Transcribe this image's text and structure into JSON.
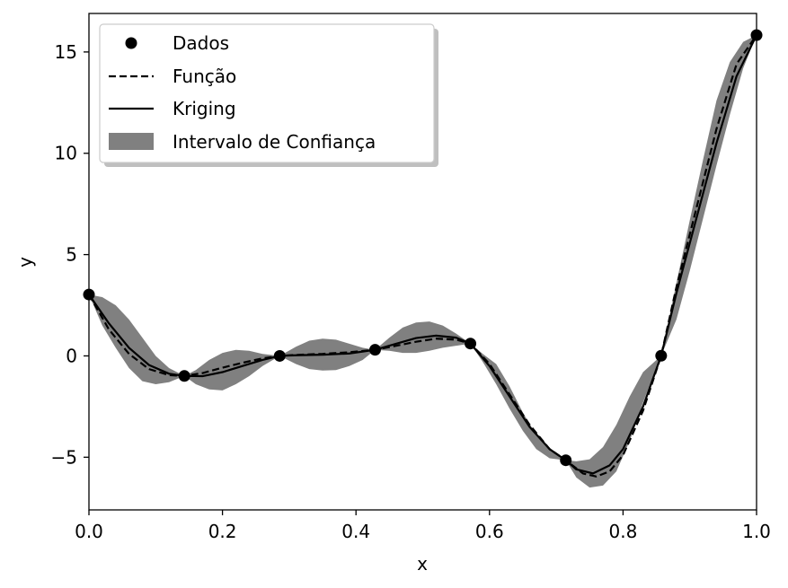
{
  "chart_data": {
    "type": "line",
    "title": "",
    "xlabel": "x",
    "ylabel": "y",
    "xlim": [
      0.0,
      1.0
    ],
    "ylim": [
      -7.6,
      16.9
    ],
    "x_ticks": [
      0.0,
      0.2,
      0.4,
      0.6,
      0.8,
      1.0
    ],
    "x_tick_labels": [
      "0.0",
      "0.2",
      "0.4",
      "0.6",
      "0.8",
      "1.0"
    ],
    "y_ticks": [
      -5,
      0,
      5,
      10,
      15
    ],
    "y_tick_labels": [
      "−5",
      "0",
      "5",
      "10",
      "15"
    ],
    "grid": false,
    "legend_placement": "upper-left",
    "legend": [
      {
        "key": "dados",
        "label": "Dados",
        "marker": "circle"
      },
      {
        "key": "funcao",
        "label": "Função",
        "linestyle": "dashed"
      },
      {
        "key": "kriging",
        "label": "Kriging",
        "linestyle": "solid"
      },
      {
        "key": "intervalo",
        "label": "Intervalo de Confiança",
        "style": "fill"
      }
    ],
    "colors": {
      "data": "#000000",
      "function": "#000000",
      "kriging": "#000000",
      "confidence": "#808080"
    },
    "dados": {
      "x": [
        0.0,
        0.1429,
        0.2857,
        0.4286,
        0.5714,
        0.7143,
        0.8571,
        1.0
      ],
      "y": [
        3.03,
        -0.99,
        0.0,
        0.3,
        0.61,
        -5.15,
        0.01,
        15.83
      ]
    },
    "funcao": {
      "x": [
        0.0,
        0.03,
        0.06,
        0.09,
        0.12,
        0.1429,
        0.17,
        0.2,
        0.23,
        0.26,
        0.2857,
        0.31,
        0.35,
        0.39,
        0.4286,
        0.46,
        0.49,
        0.52,
        0.55,
        0.5714,
        0.6,
        0.63,
        0.66,
        0.69,
        0.7143,
        0.74,
        0.76,
        0.78,
        0.8,
        0.83,
        0.8571,
        0.88,
        0.91,
        0.94,
        0.97,
        1.0
      ],
      "y": [
        3.03,
        1.3,
        0.1,
        -0.65,
        -0.95,
        -0.99,
        -0.85,
        -0.58,
        -0.34,
        -0.12,
        0.0,
        0.05,
        0.1,
        0.18,
        0.3,
        0.5,
        0.7,
        0.85,
        0.8,
        0.61,
        -0.4,
        -1.9,
        -3.4,
        -4.6,
        -5.15,
        -5.8,
        -5.95,
        -5.7,
        -4.9,
        -2.7,
        0.01,
        3.4,
        7.3,
        11.2,
        14.4,
        15.83
      ]
    },
    "kriging": {
      "x": [
        0.0,
        0.03,
        0.06,
        0.09,
        0.12,
        0.1429,
        0.17,
        0.2,
        0.23,
        0.26,
        0.2857,
        0.31,
        0.35,
        0.39,
        0.4286,
        0.46,
        0.49,
        0.52,
        0.55,
        0.5714,
        0.6,
        0.63,
        0.66,
        0.69,
        0.7143,
        0.73,
        0.755,
        0.78,
        0.8,
        0.83,
        0.8571,
        0.88,
        0.91,
        0.94,
        0.97,
        1.0
      ],
      "y": [
        3.03,
        1.6,
        0.4,
        -0.45,
        -0.88,
        -0.99,
        -1.0,
        -0.8,
        -0.5,
        -0.2,
        0.0,
        0.03,
        0.06,
        0.12,
        0.3,
        0.6,
        0.88,
        1.0,
        0.9,
        0.61,
        -0.5,
        -2.0,
        -3.5,
        -4.6,
        -5.15,
        -5.6,
        -5.8,
        -5.4,
        -4.6,
        -2.5,
        0.01,
        3.1,
        6.8,
        10.5,
        13.8,
        15.83
      ]
    },
    "intervalo": {
      "x": [
        0.0,
        0.02,
        0.04,
        0.06,
        0.08,
        0.1,
        0.12,
        0.1429,
        0.16,
        0.18,
        0.2,
        0.22,
        0.24,
        0.26,
        0.2857,
        0.31,
        0.33,
        0.35,
        0.37,
        0.39,
        0.41,
        0.4286,
        0.45,
        0.47,
        0.49,
        0.51,
        0.53,
        0.55,
        0.5714,
        0.59,
        0.61,
        0.63,
        0.65,
        0.67,
        0.69,
        0.7143,
        0.73,
        0.75,
        0.77,
        0.79,
        0.81,
        0.83,
        0.8571,
        0.88,
        0.9,
        0.92,
        0.94,
        0.96,
        0.98,
        1.0
      ],
      "upper": [
        3.03,
        2.9,
        2.5,
        1.8,
        0.9,
        0.0,
        -0.6,
        -0.99,
        -0.7,
        -0.2,
        0.15,
        0.3,
        0.25,
        0.1,
        0.0,
        0.45,
        0.75,
        0.85,
        0.8,
        0.6,
        0.4,
        0.3,
        0.9,
        1.4,
        1.65,
        1.7,
        1.5,
        1.1,
        0.61,
        0.1,
        -0.4,
        -1.5,
        -2.8,
        -3.9,
        -4.6,
        -5.15,
        -5.2,
        -5.1,
        -4.5,
        -3.4,
        -2.0,
        -0.8,
        0.01,
        3.6,
        6.7,
        9.7,
        12.6,
        14.5,
        15.5,
        15.83
      ]
    },
    "intervalo_lower": [
      3.03,
      1.5,
      0.4,
      -0.6,
      -1.25,
      -1.4,
      -1.3,
      -0.99,
      -1.4,
      -1.65,
      -1.7,
      -1.4,
      -1.0,
      -0.5,
      0.0,
      -0.4,
      -0.65,
      -0.72,
      -0.7,
      -0.5,
      -0.2,
      0.3,
      0.25,
      0.15,
      0.15,
      0.25,
      0.4,
      0.5,
      0.61,
      -0.3,
      -1.4,
      -2.6,
      -3.7,
      -4.6,
      -5.05,
      -5.15,
      -6.0,
      -6.5,
      -6.4,
      -5.7,
      -4.2,
      -2.3,
      0.01,
      1.8,
      4.2,
      6.8,
      9.4,
      11.9,
      14.2,
      15.83
    ]
  }
}
